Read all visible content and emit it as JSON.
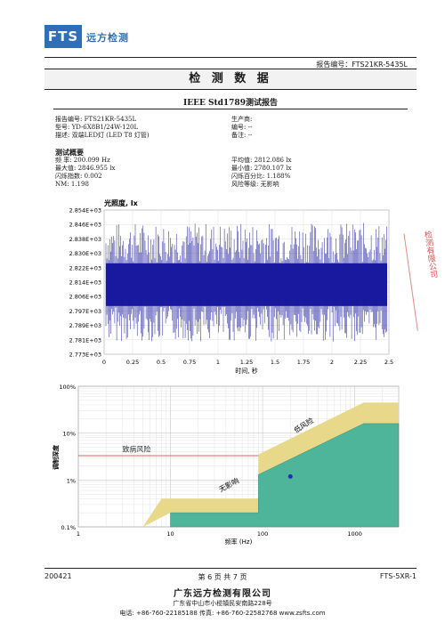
{
  "header": {
    "logo": "FTS",
    "company_short": "远方检测",
    "report_no_label": "报告编号：FTS21KR-5435L"
  },
  "section_title": "检 测 数 据",
  "report_title": "IEEE Std1789测试报告",
  "info": {
    "left": [
      "报告编号: FTS21KR-5435L",
      "型号: YD-6X8B1/24W-120L",
      "描述: 双端LED灯 (LED T8 灯管)"
    ],
    "right": [
      "生产商:",
      "编号: --",
      "备注: --"
    ]
  },
  "summary": {
    "heading": "测试概要",
    "left": [
      "频  率: 200.099 Hz",
      "最大值: 2846.955 lx",
      "闪烁指数: 0.002",
      "NM: 1.198"
    ],
    "right": [
      "平均值: 2812.086 lx",
      "最小值: 2780.107 lx",
      "闪烁百分比: 1.188%",
      "风险等级: 无影响"
    ]
  },
  "chart_data": [
    {
      "type": "line",
      "title": "光照度, lx",
      "xlabel": "时间, 秒",
      "ylabel": "",
      "x_ticks": [
        "0",
        "0.25",
        "0.5",
        "0.75",
        "1",
        "1.25",
        "1.5",
        "1.75",
        "2",
        "2.25",
        "2.5"
      ],
      "y_ticks": [
        "2.854E+03",
        "2.846E+03",
        "2.838E+03",
        "2.830E+03",
        "2.822E+03",
        "2.814E+03",
        "2.806E+03",
        "2.797E+03",
        "2.789E+03",
        "2.781E+03",
        "2.773E+03"
      ],
      "xlim": [
        0,
        2.5
      ],
      "ylim": [
        2773,
        2854
      ],
      "series": [
        {
          "frequency_hz": 200.099,
          "max": 2846.955,
          "min": 2780.107,
          "mean": 2812.086
        }
      ],
      "color": "#1a1aa0",
      "grid": true
    },
    {
      "type": "scatter",
      "title": "",
      "xlabel": "频率 (Hz)",
      "ylabel": "调制深度",
      "x_scale": "log",
      "y_scale": "log",
      "x_ticks": [
        "1",
        "10",
        "100",
        "1000"
      ],
      "y_ticks": [
        "100%",
        "10%",
        "1%",
        "0.1%"
      ],
      "xlim": [
        1,
        3000
      ],
      "ylim": [
        0.1,
        100
      ],
      "region_labels": [
        "低风险",
        "致病风险",
        "无影响"
      ],
      "point": {
        "x": 200.099,
        "y": 1.188
      },
      "colors": {
        "low_risk": "#e8d98a",
        "no_effect": "#4fb59a",
        "line": "#cc3333",
        "point": "#1f2fb0"
      },
      "grid": true
    }
  ],
  "footer": {
    "date_code": "200421",
    "page": "第 6 页 共 7 页",
    "form_code": "FTS-5XR-1",
    "company": "广东远方检测有限公司",
    "address": "广东省中山市小榄镇民安南路228号",
    "contact": "电话: +86-760-22185188    传真: +86-760-22582768    www.zsfts.com"
  },
  "stamp_text": "检测有限公司"
}
